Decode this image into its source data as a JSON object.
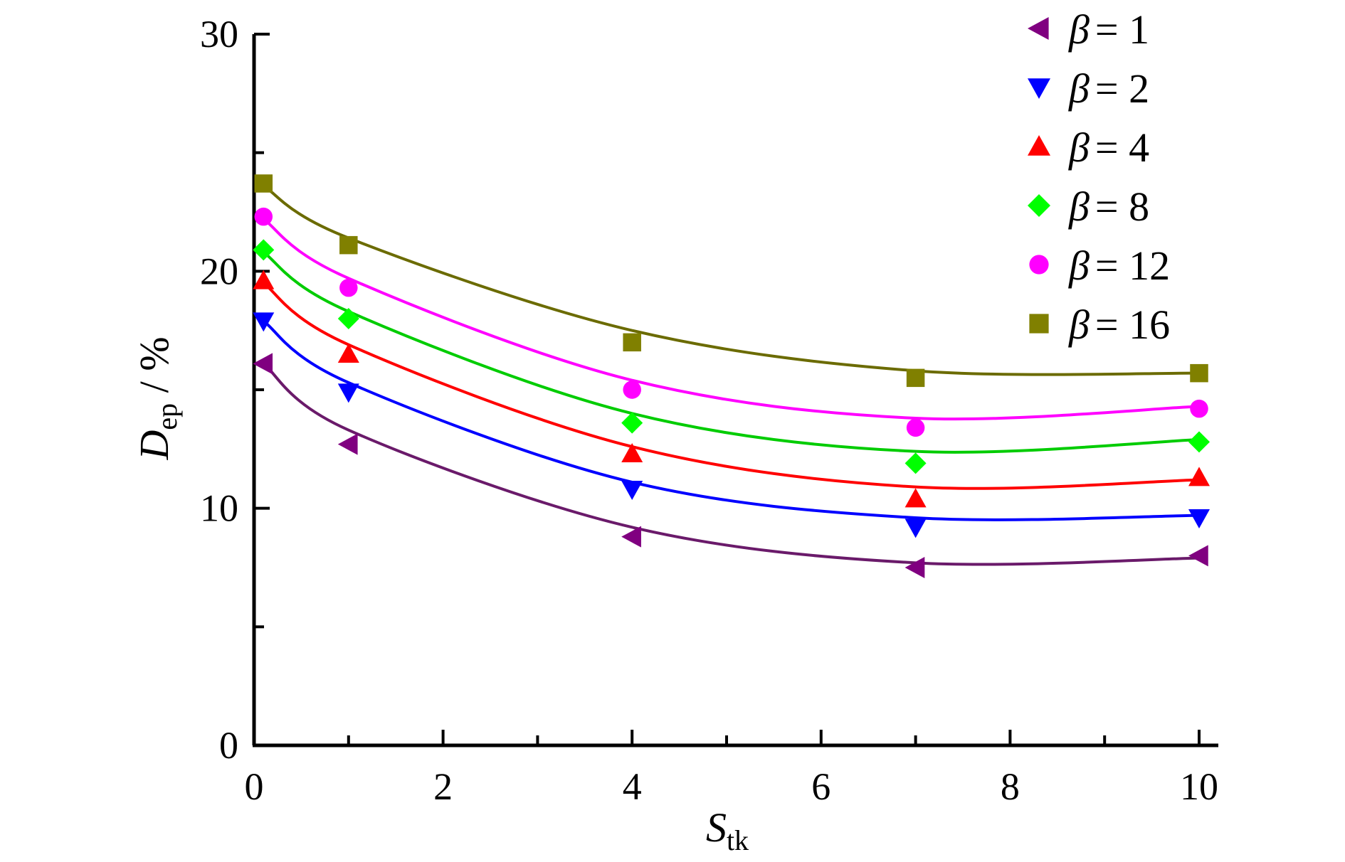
{
  "chart_data": {
    "type": "scatter",
    "xlabel": {
      "main": "S",
      "sub": "tk"
    },
    "ylabel": {
      "main": "D",
      "sub": "ep",
      "suffix": " / %"
    },
    "xlim": [
      0,
      10
    ],
    "ylim": [
      0,
      30
    ],
    "x_ticks": [
      0,
      2,
      4,
      6,
      8,
      10
    ],
    "y_ticks": [
      0,
      10,
      20,
      30
    ],
    "x_tick_labels": [
      "0",
      "2",
      "4",
      "6",
      "8",
      "10"
    ],
    "y_tick_labels": [
      "0",
      "10",
      "20",
      "30"
    ],
    "grid": false,
    "legend_position": "top-right",
    "x": [
      0.1,
      1,
      4,
      7,
      10
    ],
    "series": [
      {
        "name": "β=1",
        "beta": "1",
        "marker": "triangle-left",
        "color": "#800080",
        "line_color": "#6a1a6a",
        "values": [
          16.1,
          12.7,
          8.8,
          7.5,
          8.0
        ]
      },
      {
        "name": "β=2",
        "beta": "2",
        "marker": "triangle-down",
        "color": "#0000ff",
        "line_color": "#0000ff",
        "values": [
          17.9,
          14.9,
          10.8,
          9.2,
          9.6
        ]
      },
      {
        "name": "β=4",
        "beta": "4",
        "marker": "triangle-up",
        "color": "#ff0000",
        "line_color": "#ff0000",
        "values": [
          19.6,
          16.5,
          12.3,
          10.4,
          11.3
        ]
      },
      {
        "name": "β=8",
        "beta": "8",
        "marker": "diamond",
        "color": "#00ff00",
        "line_color": "#00cc00",
        "values": [
          20.9,
          18.0,
          13.6,
          11.9,
          12.8
        ]
      },
      {
        "name": "β=12",
        "beta": "12",
        "marker": "circle",
        "color": "#ff00ff",
        "line_color": "#ff00ff",
        "values": [
          22.3,
          19.3,
          15.0,
          13.4,
          14.2
        ]
      },
      {
        "name": "β=16",
        "beta": "16",
        "marker": "square",
        "color": "#808000",
        "line_color": "#6b6b00",
        "values": [
          23.7,
          21.1,
          17.0,
          15.5,
          15.7
        ]
      }
    ],
    "fit_curves": [
      [
        16.1,
        13.3,
        9.2,
        7.7,
        7.9
      ],
      [
        17.9,
        15.3,
        11.1,
        9.6,
        9.7
      ],
      [
        19.5,
        16.9,
        12.6,
        10.9,
        11.2
      ],
      [
        20.8,
        18.3,
        14.0,
        12.4,
        12.9
      ],
      [
        22.2,
        19.7,
        15.4,
        13.8,
        14.3
      ],
      [
        23.6,
        21.4,
        17.5,
        15.8,
        15.7
      ]
    ]
  }
}
